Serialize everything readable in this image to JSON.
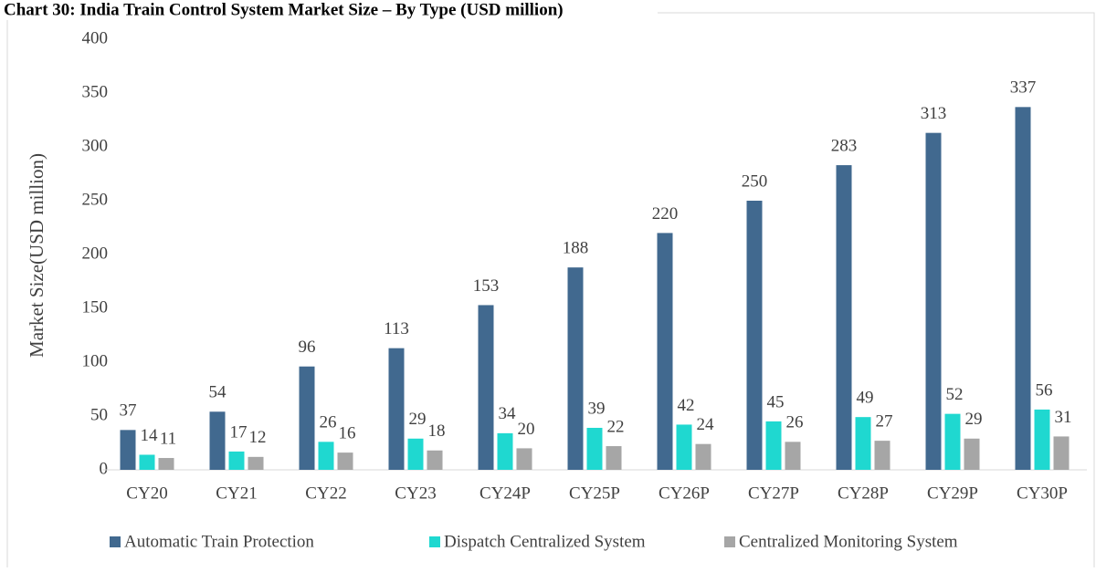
{
  "chart_data": {
    "type": "bar",
    "title": "Chart 30: India Train Control System Market Size – By Type (USD million)",
    "y_label": "Market Size(USD  million)",
    "categories": [
      "CY20",
      "CY21",
      "CY22",
      "CY23",
      "CY24P",
      "CY25P",
      "CY26P",
      "CY27P",
      "CY28P",
      "CY29P",
      "CY30P"
    ],
    "series": [
      {
        "name": "Automatic Train Protection",
        "color": "#41698f",
        "values": [
          37,
          54,
          96,
          113,
          153,
          188,
          220,
          250,
          283,
          313,
          337
        ]
      },
      {
        "name": "Dispatch Centralized System",
        "color": "#1fd8d0",
        "values": [
          14,
          17,
          26,
          29,
          34,
          39,
          42,
          45,
          49,
          52,
          56
        ]
      },
      {
        "name": "Centralized Monitoring System",
        "color": "#a6a6a6",
        "values": [
          11,
          12,
          16,
          18,
          20,
          22,
          24,
          26,
          27,
          29,
          31
        ]
      }
    ],
    "ylim": [
      0,
      400
    ],
    "yticks": [
      0,
      50,
      100,
      150,
      200,
      250,
      300,
      350,
      400
    ],
    "grid": false,
    "legend": "bottom"
  }
}
